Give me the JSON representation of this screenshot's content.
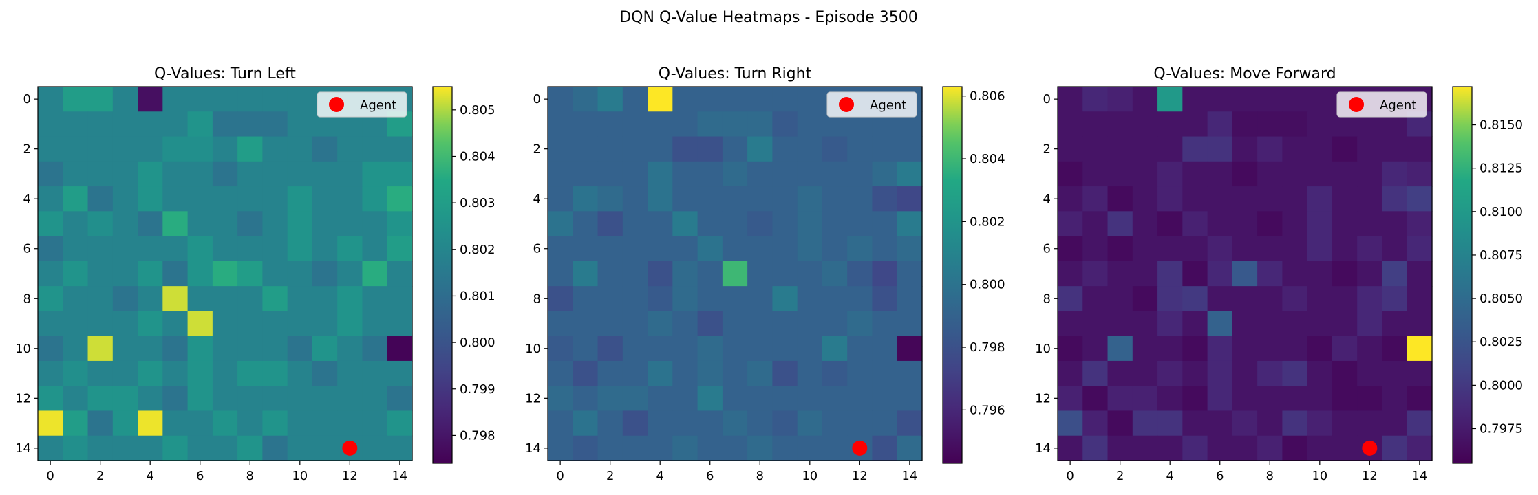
{
  "suptitle": "DQN Q-Value Heatmaps - Episode 3500",
  "chart_data": [
    {
      "type": "heatmap",
      "title": "Q-Values: Turn Left",
      "x_ticks": [
        0,
        2,
        4,
        6,
        8,
        10,
        12,
        14
      ],
      "y_ticks": [
        0,
        2,
        4,
        6,
        8,
        10,
        12,
        14
      ],
      "colormap": "viridis",
      "colorbar_range": [
        0.7974,
        0.8055
      ],
      "colorbar_ticks": [
        "0.798",
        "0.799",
        "0.800",
        "0.801",
        "0.802",
        "0.803",
        "0.804",
        "0.805"
      ],
      "legend": {
        "label": "Agent",
        "marker_color": "#ff0000"
      },
      "agent": {
        "x": 12,
        "y": 14
      },
      "grid": [
        [
          0.8019,
          0.803,
          0.803,
          0.8019,
          0.7978,
          0.8019,
          0.8019,
          0.8019,
          0.8019,
          0.8019,
          0.8019,
          0.8019,
          0.8019,
          0.8019,
          0.8019
        ],
        [
          0.8019,
          0.8019,
          0.8019,
          0.8019,
          0.8019,
          0.8019,
          0.8026,
          0.8013,
          0.8013,
          0.8013,
          0.8019,
          0.8019,
          0.8019,
          0.8019,
          0.803
        ],
        [
          0.8019,
          0.8019,
          0.8019,
          0.8019,
          0.8019,
          0.8024,
          0.8024,
          0.8019,
          0.803,
          0.8019,
          0.8019,
          0.8013,
          0.8019,
          0.8019,
          0.8019
        ],
        [
          0.8013,
          0.8019,
          0.8019,
          0.8019,
          0.8026,
          0.8019,
          0.8019,
          0.8013,
          0.8019,
          0.8019,
          0.8019,
          0.8019,
          0.8019,
          0.8026,
          0.8026
        ],
        [
          0.8019,
          0.803,
          0.8013,
          0.8019,
          0.8026,
          0.8019,
          0.8019,
          0.8019,
          0.8019,
          0.8019,
          0.8026,
          0.8019,
          0.8019,
          0.8026,
          0.8036
        ],
        [
          0.8026,
          0.8019,
          0.8024,
          0.8019,
          0.8013,
          0.8036,
          0.8019,
          0.8019,
          0.8013,
          0.8019,
          0.8026,
          0.8019,
          0.8019,
          0.8019,
          0.8026
        ],
        [
          0.8013,
          0.8019,
          0.8019,
          0.8019,
          0.8019,
          0.8019,
          0.8026,
          0.8019,
          0.8019,
          0.8019,
          0.8026,
          0.8019,
          0.8026,
          0.8019,
          0.803
        ],
        [
          0.8019,
          0.8026,
          0.8019,
          0.8019,
          0.8026,
          0.8013,
          0.8026,
          0.8036,
          0.803,
          0.8019,
          0.8019,
          0.8013,
          0.8019,
          0.8036,
          0.8019
        ],
        [
          0.8026,
          0.8019,
          0.8019,
          0.8013,
          0.8019,
          0.8052,
          0.8019,
          0.8019,
          0.8019,
          0.803,
          0.8019,
          0.8019,
          0.8026,
          0.8019,
          0.8019
        ],
        [
          0.8019,
          0.8019,
          0.8019,
          0.8019,
          0.8026,
          0.8019,
          0.8052,
          0.8019,
          0.8019,
          0.8019,
          0.8019,
          0.8019,
          0.8026,
          0.8019,
          0.8019
        ],
        [
          0.8013,
          0.8019,
          0.8052,
          0.8019,
          0.8019,
          0.8013,
          0.8026,
          0.8019,
          0.8019,
          0.8019,
          0.8013,
          0.8026,
          0.8019,
          0.8013,
          0.7975
        ],
        [
          0.8019,
          0.8024,
          0.8019,
          0.8019,
          0.8026,
          0.8019,
          0.8026,
          0.8019,
          0.8026,
          0.8026,
          0.8019,
          0.8013,
          0.8019,
          0.8019,
          0.8019
        ],
        [
          0.8026,
          0.8019,
          0.8026,
          0.8026,
          0.8019,
          0.8013,
          0.8026,
          0.8019,
          0.8019,
          0.8019,
          0.8019,
          0.8019,
          0.8019,
          0.8019,
          0.8013
        ],
        [
          0.8054,
          0.803,
          0.8013,
          0.8026,
          0.8054,
          0.8019,
          0.8019,
          0.8026,
          0.8019,
          0.8026,
          0.8019,
          0.8019,
          0.8019,
          0.8019,
          0.8026
        ],
        [
          0.8019,
          0.8024,
          0.8019,
          0.8019,
          0.8019,
          0.8026,
          0.8019,
          0.8019,
          0.8026,
          0.8013,
          0.8019,
          0.8019,
          0.8019,
          0.8019,
          0.8019
        ]
      ]
    },
    {
      "type": "heatmap",
      "title": "Q-Values: Turn Right",
      "x_ticks": [
        0,
        2,
        4,
        6,
        8,
        10,
        12,
        14
      ],
      "y_ticks": [
        0,
        2,
        4,
        6,
        8,
        10,
        12,
        14
      ],
      "colormap": "viridis",
      "colorbar_range": [
        0.7943,
        0.8063
      ],
      "colorbar_ticks": [
        "0.796",
        "0.798",
        "0.800",
        "0.802",
        "0.804",
        "0.806"
      ],
      "legend": {
        "label": "Agent",
        "marker_color": "#ff0000"
      },
      "agent": {
        "x": 12,
        "y": 14
      },
      "grid": [
        [
          0.799,
          0.7995,
          0.8005,
          0.799,
          0.8063,
          0.799,
          0.799,
          0.799,
          0.799,
          0.799,
          0.799,
          0.799,
          0.799,
          0.799,
          0.799
        ],
        [
          0.799,
          0.799,
          0.799,
          0.799,
          0.799,
          0.799,
          0.7995,
          0.7995,
          0.7995,
          0.7985,
          0.799,
          0.799,
          0.799,
          0.799,
          0.799
        ],
        [
          0.799,
          0.799,
          0.799,
          0.799,
          0.799,
          0.798,
          0.798,
          0.799,
          0.8005,
          0.799,
          0.799,
          0.7985,
          0.799,
          0.799,
          0.799
        ],
        [
          0.799,
          0.799,
          0.799,
          0.799,
          0.8,
          0.799,
          0.799,
          0.7995,
          0.799,
          0.799,
          0.799,
          0.799,
          0.799,
          0.7995,
          0.8005
        ],
        [
          0.799,
          0.8,
          0.7995,
          0.799,
          0.8,
          0.799,
          0.799,
          0.799,
          0.799,
          0.799,
          0.7995,
          0.799,
          0.799,
          0.798,
          0.7975
        ],
        [
          0.8,
          0.799,
          0.798,
          0.799,
          0.799,
          0.8005,
          0.799,
          0.799,
          0.7985,
          0.799,
          0.7995,
          0.799,
          0.799,
          0.799,
          0.8005
        ],
        [
          0.799,
          0.799,
          0.799,
          0.799,
          0.799,
          0.799,
          0.8,
          0.799,
          0.799,
          0.799,
          0.7995,
          0.799,
          0.7995,
          0.799,
          0.7995
        ],
        [
          0.799,
          0.8005,
          0.799,
          0.799,
          0.798,
          0.7995,
          0.799,
          0.804,
          0.799,
          0.799,
          0.799,
          0.7995,
          0.7985,
          0.7975,
          0.799
        ],
        [
          0.798,
          0.799,
          0.799,
          0.799,
          0.7985,
          0.7995,
          0.799,
          0.799,
          0.799,
          0.8005,
          0.799,
          0.799,
          0.799,
          0.798,
          0.799
        ],
        [
          0.799,
          0.799,
          0.799,
          0.799,
          0.7995,
          0.799,
          0.798,
          0.799,
          0.799,
          0.799,
          0.799,
          0.799,
          0.7995,
          0.799,
          0.799
        ],
        [
          0.7985,
          0.799,
          0.798,
          0.799,
          0.799,
          0.799,
          0.7995,
          0.799,
          0.799,
          0.799,
          0.799,
          0.8005,
          0.799,
          0.799,
          0.7945
        ],
        [
          0.799,
          0.798,
          0.799,
          0.799,
          0.8,
          0.799,
          0.7995,
          0.799,
          0.7995,
          0.798,
          0.799,
          0.7985,
          0.799,
          0.799,
          0.799
        ],
        [
          0.7995,
          0.799,
          0.7995,
          0.7995,
          0.799,
          0.799,
          0.8005,
          0.799,
          0.799,
          0.799,
          0.799,
          0.799,
          0.799,
          0.799,
          0.799
        ],
        [
          0.799,
          0.8,
          0.799,
          0.798,
          0.799,
          0.799,
          0.799,
          0.7995,
          0.799,
          0.7985,
          0.7995,
          0.799,
          0.799,
          0.799,
          0.798
        ],
        [
          0.799,
          0.7985,
          0.799,
          0.799,
          0.799,
          0.7995,
          0.799,
          0.799,
          0.7995,
          0.799,
          0.799,
          0.799,
          0.799,
          0.798,
          0.7995
        ]
      ]
    },
    {
      "type": "heatmap",
      "title": "Q-Values: Move Forward",
      "x_ticks": [
        0,
        2,
        4,
        6,
        8,
        10,
        12,
        14
      ],
      "y_ticks": [
        0,
        2,
        4,
        6,
        8,
        10,
        12,
        14
      ],
      "colormap": "viridis",
      "colorbar_range": [
        0.7955,
        0.8172
      ],
      "colorbar_ticks": [
        "0.7975",
        "0.8000",
        "0.8025",
        "0.8050",
        "0.8075",
        "0.8100",
        "0.8125",
        "0.8150"
      ],
      "legend": {
        "label": "Agent",
        "marker_color": "#ff0000"
      },
      "agent": {
        "x": 12,
        "y": 14
      },
      "grid": [
        [
          0.797,
          0.7985,
          0.798,
          0.797,
          0.81,
          0.797,
          0.797,
          0.797,
          0.797,
          0.797,
          0.797,
          0.797,
          0.797,
          0.797,
          0.797
        ],
        [
          0.797,
          0.797,
          0.797,
          0.797,
          0.797,
          0.797,
          0.7985,
          0.7965,
          0.7965,
          0.7965,
          0.797,
          0.797,
          0.797,
          0.797,
          0.7985
        ],
        [
          0.797,
          0.797,
          0.797,
          0.797,
          0.797,
          0.7995,
          0.7995,
          0.797,
          0.798,
          0.797,
          0.797,
          0.7962,
          0.797,
          0.797,
          0.797
        ],
        [
          0.7962,
          0.797,
          0.797,
          0.797,
          0.798,
          0.797,
          0.797,
          0.7962,
          0.797,
          0.797,
          0.797,
          0.797,
          0.797,
          0.7985,
          0.798
        ],
        [
          0.797,
          0.798,
          0.7962,
          0.797,
          0.798,
          0.797,
          0.797,
          0.797,
          0.797,
          0.797,
          0.7985,
          0.797,
          0.797,
          0.7995,
          0.8005
        ],
        [
          0.798,
          0.797,
          0.7995,
          0.797,
          0.7962,
          0.798,
          0.797,
          0.797,
          0.7962,
          0.797,
          0.7985,
          0.797,
          0.797,
          0.797,
          0.798
        ],
        [
          0.7962,
          0.797,
          0.7962,
          0.797,
          0.797,
          0.797,
          0.798,
          0.797,
          0.797,
          0.797,
          0.7985,
          0.797,
          0.798,
          0.797,
          0.7985
        ],
        [
          0.797,
          0.798,
          0.797,
          0.797,
          0.7995,
          0.7962,
          0.7985,
          0.803,
          0.7985,
          0.797,
          0.797,
          0.7962,
          0.797,
          0.8005,
          0.797
        ],
        [
          0.7995,
          0.797,
          0.797,
          0.7962,
          0.7995,
          0.8,
          0.797,
          0.797,
          0.797,
          0.798,
          0.797,
          0.797,
          0.7985,
          0.7995,
          0.797
        ],
        [
          0.797,
          0.797,
          0.797,
          0.797,
          0.7985,
          0.797,
          0.804,
          0.797,
          0.797,
          0.797,
          0.797,
          0.797,
          0.7985,
          0.797,
          0.797
        ],
        [
          0.7962,
          0.797,
          0.804,
          0.797,
          0.797,
          0.7962,
          0.7985,
          0.797,
          0.797,
          0.797,
          0.7962,
          0.798,
          0.797,
          0.7962,
          0.8172
        ],
        [
          0.797,
          0.7995,
          0.797,
          0.797,
          0.798,
          0.797,
          0.7985,
          0.797,
          0.7985,
          0.7995,
          0.797,
          0.7962,
          0.797,
          0.797,
          0.797
        ],
        [
          0.798,
          0.7962,
          0.798,
          0.798,
          0.797,
          0.7962,
          0.7985,
          0.797,
          0.797,
          0.797,
          0.797,
          0.7962,
          0.7962,
          0.797,
          0.7962
        ],
        [
          0.802,
          0.798,
          0.7962,
          0.7995,
          0.7995,
          0.797,
          0.797,
          0.798,
          0.797,
          0.7995,
          0.798,
          0.797,
          0.797,
          0.797,
          0.7995
        ],
        [
          0.797,
          0.7995,
          0.797,
          0.797,
          0.797,
          0.7985,
          0.797,
          0.797,
          0.798,
          0.7962,
          0.797,
          0.797,
          0.797,
          0.7995,
          0.798
        ]
      ]
    }
  ]
}
